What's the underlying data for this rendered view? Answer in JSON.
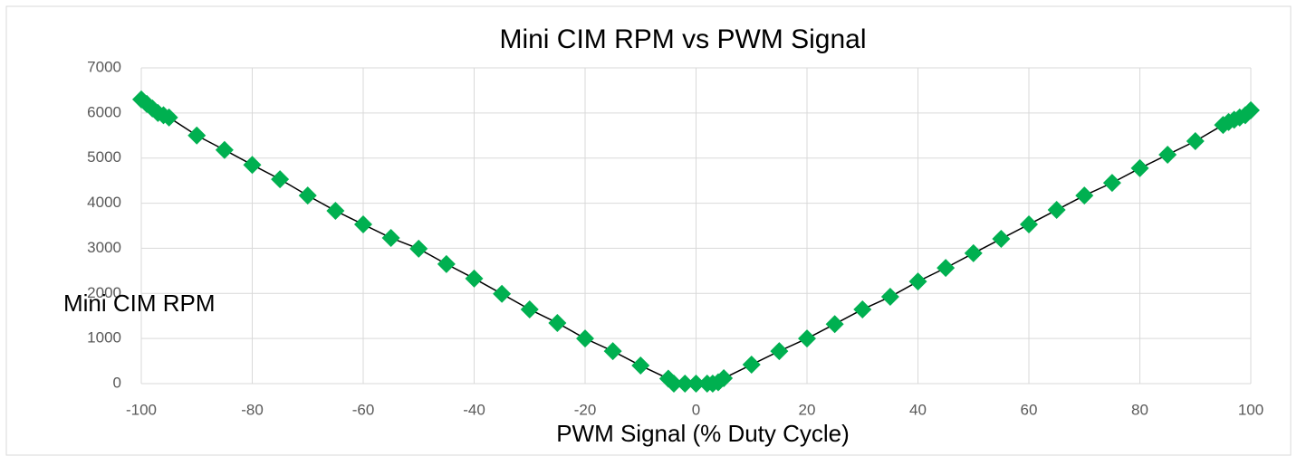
{
  "chart_data": {
    "type": "scatter",
    "title": "Mini CIM RPM vs PWM Signal",
    "x_label": "PWM Signal (% Duty Cycle)",
    "y_label": "Mini CIM RPM",
    "series": [
      {
        "name": "Mini CIM RPM",
        "color": "#00b050",
        "line_color": "#000000",
        "x": [
          -100,
          -99,
          -98,
          -97,
          -96,
          -95,
          -90,
          -85,
          -80,
          -75,
          -70,
          -65,
          -60,
          -55,
          -50,
          -45,
          -40,
          -35,
          -30,
          -25,
          -20,
          -15,
          -10,
          -5,
          -4,
          -2,
          0,
          2,
          3,
          4,
          5,
          10,
          15,
          20,
          25,
          30,
          35,
          40,
          45,
          50,
          55,
          60,
          65,
          70,
          75,
          80,
          85,
          90,
          95,
          96,
          97,
          98,
          99,
          100
        ],
        "values": [
          6300,
          6200,
          6100,
          6000,
          5950,
          5900,
          5500,
          5180,
          4850,
          4530,
          4170,
          3830,
          3530,
          3230,
          2990,
          2650,
          2330,
          1990,
          1645,
          1345,
          1000,
          720,
          400,
          110,
          0,
          0,
          0,
          0,
          0,
          30,
          120,
          420,
          720,
          1000,
          1320,
          1645,
          1925,
          2265,
          2565,
          2890,
          3210,
          3530,
          3850,
          4170,
          4450,
          4775,
          5075,
          5375,
          5735,
          5800,
          5850,
          5900,
          5950,
          6060
        ]
      }
    ],
    "xlim": [
      -100,
      100
    ],
    "xticks": [
      -100,
      -80,
      -60,
      -40,
      -20,
      0,
      20,
      40,
      60,
      80,
      100
    ],
    "ylim": [
      0,
      7000
    ],
    "yticks": [
      0,
      1000,
      2000,
      3000,
      4000,
      5000,
      6000,
      7000
    ],
    "grid": true
  }
}
